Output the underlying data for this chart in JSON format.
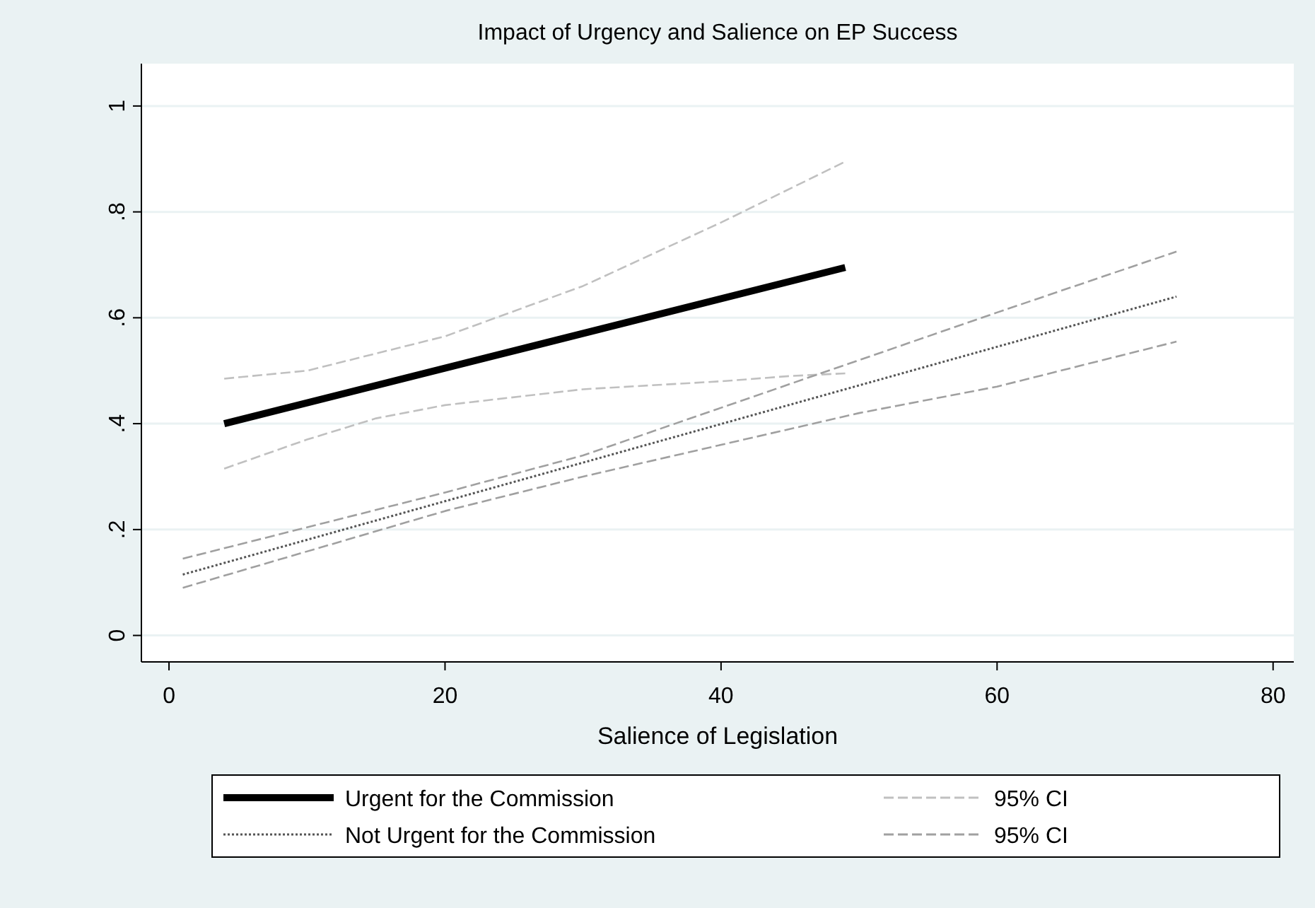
{
  "chart_data": {
    "type": "line",
    "title": "Impact of Urgency and Salience on EP Success",
    "xlabel": "Salience of Legislation",
    "xlim": [
      -2,
      81.5
    ],
    "xticks": [
      0,
      20,
      40,
      60,
      80
    ],
    "ylim": [
      -0.05,
      1.08
    ],
    "yticks": [
      {
        "value": 0,
        "label": "0"
      },
      {
        "value": 0.2,
        "label": ".2"
      },
      {
        "value": 0.4,
        "label": ".4"
      },
      {
        "value": 0.6,
        "label": ".6"
      },
      {
        "value": 0.8,
        "label": ".8"
      },
      {
        "value": 1,
        "label": "1"
      }
    ],
    "grid": "y",
    "legend": "bottom",
    "marker": "none",
    "series": [
      {
        "name": "Urgent for the Commission",
        "color": "#000000",
        "line_style": "solid",
        "x": [
          4,
          49
        ],
        "values": [
          0.4,
          0.695
        ]
      },
      {
        "name": "95% CI",
        "color": "#c0c0c0",
        "line_style": "dashed",
        "x": [
          4,
          10,
          20,
          30,
          40,
          49
        ],
        "values": [
          0.485,
          0.5,
          0.565,
          0.66,
          0.78,
          0.895
        ]
      },
      {
        "color": "#c0c0c0",
        "line_style": "dashed",
        "x": [
          4,
          10,
          15,
          20,
          30,
          40,
          45,
          49
        ],
        "values": [
          0.315,
          0.37,
          0.41,
          0.435,
          0.465,
          0.48,
          0.49,
          0.495
        ]
      },
      {
        "name": "Not Urgent for the Commission",
        "color": "#555555",
        "line_style": "dotted",
        "x": [
          1,
          73
        ],
        "values": [
          0.115,
          0.64
        ]
      },
      {
        "name": "95% CI",
        "color": "#a0a0a0",
        "line_style": "dashed",
        "x": [
          1,
          20,
          30,
          40,
          50,
          60,
          73
        ],
        "values": [
          0.145,
          0.27,
          0.34,
          0.43,
          0.52,
          0.61,
          0.725
        ]
      },
      {
        "color": "#a0a0a0",
        "line_style": "dashed",
        "x": [
          1,
          20,
          30,
          40,
          50,
          60,
          73
        ],
        "values": [
          0.09,
          0.235,
          0.3,
          0.36,
          0.42,
          0.47,
          0.555
        ]
      }
    ]
  }
}
